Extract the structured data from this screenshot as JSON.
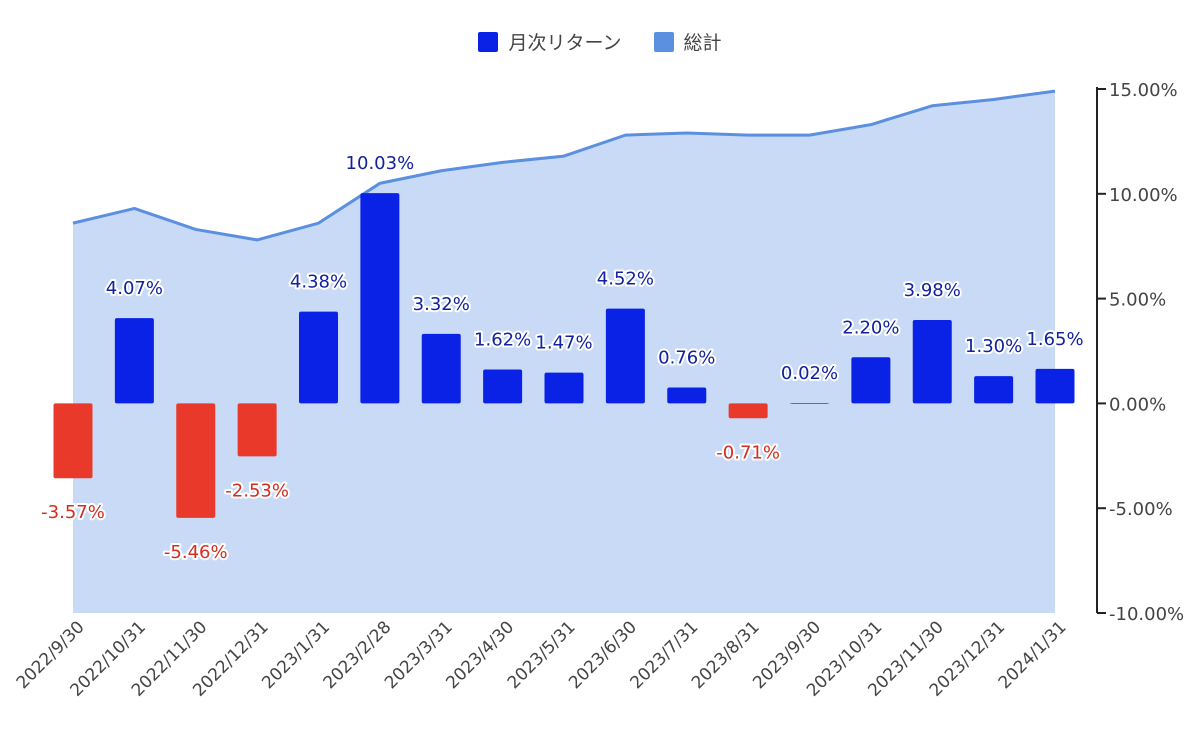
{
  "chart_data": {
    "type": "bar",
    "title": "",
    "xlabel": "",
    "ylabel": "",
    "ylim": [
      -10,
      15
    ],
    "yticks": [
      "15.00%",
      "10.00%",
      "5.00%",
      "0.00%",
      "-5.00%",
      "-10.00%"
    ],
    "ytick_values": [
      15,
      10,
      5,
      0,
      -5,
      -10
    ],
    "y_axis_side": "right",
    "grid": false,
    "legend_position": "top-center",
    "categories": [
      "2022/9/30",
      "2022/10/31",
      "2022/11/30",
      "2022/12/31",
      "2023/1/31",
      "2023/2/28",
      "2023/3/31",
      "2023/4/30",
      "2023/5/31",
      "2023/6/30",
      "2023/7/31",
      "2023/8/31",
      "2023/9/30",
      "2023/10/31",
      "2023/11/30",
      "2023/12/31",
      "2024/1/31"
    ],
    "series": [
      {
        "name": "月次リターン",
        "type": "bar",
        "color": "#0a22e6",
        "negative_color": "#e8392b",
        "values": [
          -3.57,
          4.07,
          -5.46,
          -2.53,
          4.38,
          10.03,
          3.32,
          1.62,
          1.47,
          4.52,
          0.76,
          -0.71,
          0.02,
          2.2,
          3.98,
          1.3,
          1.65
        ],
        "labels": [
          "-3.57%",
          "4.07%",
          "-5.46%",
          "-2.53%",
          "4.38%",
          "10.03%",
          "3.32%",
          "1.62%",
          "1.47%",
          "4.52%",
          "0.76%",
          "-0.71%",
          "0.02%",
          "2.20%",
          "3.98%",
          "1.30%",
          "1.65%"
        ]
      },
      {
        "name": "総計",
        "type": "area",
        "color": "#5b8fdf",
        "fill": "#c9daf6",
        "values": [
          8.6,
          9.3,
          8.3,
          7.8,
          8.6,
          10.5,
          11.1,
          11.5,
          11.8,
          12.8,
          12.9,
          12.8,
          12.8,
          13.3,
          14.2,
          14.5,
          14.9
        ]
      }
    ]
  }
}
